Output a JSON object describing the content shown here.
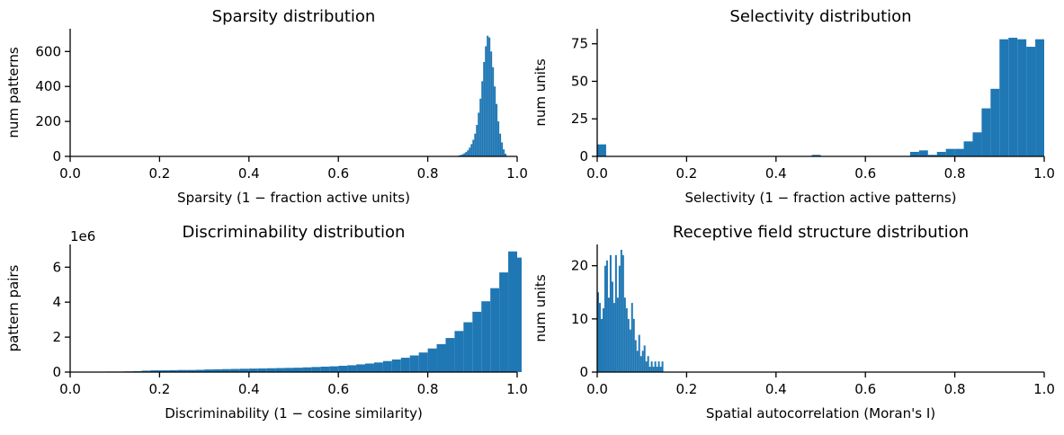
{
  "chart_data": [
    {
      "type": "histogram",
      "title": "Sparsity distribution",
      "xlabel": "Sparsity (1 −  fraction active units)",
      "ylabel": "num patterns",
      "xlim": [
        0,
        1
      ],
      "ylim": [
        0,
        730
      ],
      "xticks": [
        "0.0",
        "0.2",
        "0.4",
        "0.6",
        "0.8",
        "1.0"
      ],
      "yticks": [
        0,
        200,
        400,
        600
      ],
      "offset_label": "",
      "color": "#1f77b4",
      "bins": [
        [
          0.868,
          5
        ],
        [
          0.872,
          8
        ],
        [
          0.876,
          12
        ],
        [
          0.88,
          18
        ],
        [
          0.884,
          25
        ],
        [
          0.888,
          35
        ],
        [
          0.892,
          50
        ],
        [
          0.896,
          70
        ],
        [
          0.9,
          95
        ],
        [
          0.904,
          130
        ],
        [
          0.908,
          180
        ],
        [
          0.912,
          250
        ],
        [
          0.916,
          330
        ],
        [
          0.92,
          430
        ],
        [
          0.924,
          540
        ],
        [
          0.928,
          630
        ],
        [
          0.932,
          690
        ],
        [
          0.936,
          680
        ],
        [
          0.94,
          600
        ],
        [
          0.944,
          510
        ],
        [
          0.948,
          400
        ],
        [
          0.952,
          300
        ],
        [
          0.956,
          200
        ],
        [
          0.96,
          130
        ],
        [
          0.964,
          80
        ],
        [
          0.968,
          40
        ],
        [
          0.972,
          15
        ]
      ],
      "bin_width": 0.004
    },
    {
      "type": "histogram",
      "title": "Selectivity distribution",
      "xlabel": "Selectivity (1 −  fraction active patterns)",
      "ylabel": "num units",
      "xlim": [
        0,
        1
      ],
      "ylim": [
        0,
        85
      ],
      "xticks": [
        "0.0",
        "0.2",
        "0.4",
        "0.6",
        "0.8",
        "1.0"
      ],
      "yticks": [
        0,
        25,
        50,
        75
      ],
      "offset_label": "",
      "color": "#1f77b4",
      "bins": [
        [
          0.0,
          8
        ],
        [
          0.48,
          1
        ],
        [
          0.7,
          3
        ],
        [
          0.72,
          4
        ],
        [
          0.74,
          1
        ],
        [
          0.76,
          3
        ],
        [
          0.78,
          5
        ],
        [
          0.8,
          5
        ],
        [
          0.82,
          10
        ],
        [
          0.84,
          16
        ],
        [
          0.86,
          32
        ],
        [
          0.88,
          45
        ],
        [
          0.9,
          78
        ],
        [
          0.92,
          79
        ],
        [
          0.94,
          78
        ],
        [
          0.96,
          73
        ],
        [
          0.98,
          78
        ]
      ],
      "bin_width": 0.02
    },
    {
      "type": "histogram",
      "title": "Discriminability distribution",
      "xlabel": "Discriminability (1 −  cosine similarity)",
      "ylabel": "pattern pairs",
      "xlim": [
        0,
        1
      ],
      "ylim": [
        0,
        7.3
      ],
      "xticks": [
        "0.0",
        "0.2",
        "0.4",
        "0.6",
        "0.8",
        "1.0"
      ],
      "yticks": [
        0,
        2,
        4,
        6
      ],
      "offset_label": "1e6",
      "color": "#1f77b4",
      "bins": [
        [
          0.06,
          0.02
        ],
        [
          0.08,
          0.03
        ],
        [
          0.1,
          0.03
        ],
        [
          0.12,
          0.04
        ],
        [
          0.14,
          0.05
        ],
        [
          0.16,
          0.08
        ],
        [
          0.18,
          0.1
        ],
        [
          0.2,
          0.1
        ],
        [
          0.22,
          0.11
        ],
        [
          0.24,
          0.12
        ],
        [
          0.26,
          0.12
        ],
        [
          0.28,
          0.13
        ],
        [
          0.3,
          0.15
        ],
        [
          0.32,
          0.16
        ],
        [
          0.34,
          0.17
        ],
        [
          0.36,
          0.18
        ],
        [
          0.38,
          0.19
        ],
        [
          0.4,
          0.2
        ],
        [
          0.42,
          0.21
        ],
        [
          0.44,
          0.22
        ],
        [
          0.46,
          0.23
        ],
        [
          0.48,
          0.24
        ],
        [
          0.5,
          0.25
        ],
        [
          0.52,
          0.27
        ],
        [
          0.54,
          0.29
        ],
        [
          0.56,
          0.31
        ],
        [
          0.58,
          0.33
        ],
        [
          0.6,
          0.36
        ],
        [
          0.62,
          0.39
        ],
        [
          0.64,
          0.44
        ],
        [
          0.66,
          0.49
        ],
        [
          0.68,
          0.55
        ],
        [
          0.7,
          0.63
        ],
        [
          0.72,
          0.72
        ],
        [
          0.74,
          0.82
        ],
        [
          0.76,
          0.95
        ],
        [
          0.78,
          1.12
        ],
        [
          0.8,
          1.35
        ],
        [
          0.82,
          1.6
        ],
        [
          0.84,
          1.95
        ],
        [
          0.86,
          2.35
        ],
        [
          0.88,
          2.85
        ],
        [
          0.9,
          3.45
        ],
        [
          0.92,
          4.05
        ],
        [
          0.94,
          4.8
        ],
        [
          0.96,
          5.7
        ],
        [
          0.98,
          6.9
        ],
        [
          0.99,
          6.55
        ]
      ],
      "bin_width": 0.02
    },
    {
      "type": "histogram",
      "title": "Receptive field structure distribution",
      "xlabel": "Spatial autocorrelation (Moran's I)",
      "ylabel": "num units",
      "xlim": [
        0,
        1
      ],
      "ylim": [
        0,
        24
      ],
      "xticks": [
        "0.0",
        "0.2",
        "0.4",
        "0.6",
        "0.8",
        "1.0"
      ],
      "yticks": [
        0,
        10,
        20
      ],
      "offset_label": "",
      "color": "#1f77b4",
      "bins": [
        [
          0.0,
          15
        ],
        [
          0.004,
          13
        ],
        [
          0.008,
          10
        ],
        [
          0.012,
          12
        ],
        [
          0.016,
          20
        ],
        [
          0.02,
          21
        ],
        [
          0.024,
          14
        ],
        [
          0.028,
          22
        ],
        [
          0.032,
          17
        ],
        [
          0.036,
          13
        ],
        [
          0.04,
          22
        ],
        [
          0.044,
          14
        ],
        [
          0.048,
          20
        ],
        [
          0.052,
          23
        ],
        [
          0.056,
          22
        ],
        [
          0.06,
          14
        ],
        [
          0.064,
          12
        ],
        [
          0.068,
          10
        ],
        [
          0.072,
          8
        ],
        [
          0.076,
          13
        ],
        [
          0.08,
          10
        ],
        [
          0.084,
          6
        ],
        [
          0.088,
          4
        ],
        [
          0.092,
          7
        ],
        [
          0.096,
          3
        ],
        [
          0.1,
          4
        ],
        [
          0.104,
          5
        ],
        [
          0.108,
          2
        ],
        [
          0.112,
          3
        ],
        [
          0.116,
          1
        ],
        [
          0.12,
          2
        ],
        [
          0.124,
          1
        ],
        [
          0.128,
          2
        ],
        [
          0.132,
          1
        ],
        [
          0.136,
          2
        ],
        [
          0.14,
          1
        ],
        [
          0.144,
          2
        ]
      ],
      "bin_width": 0.004
    }
  ]
}
